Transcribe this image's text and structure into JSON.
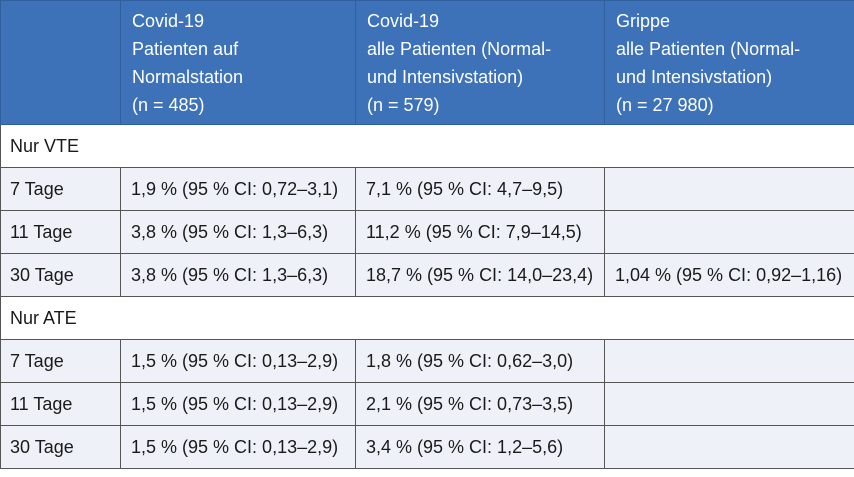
{
  "header": {
    "columns": [
      {
        "lines": [
          ""
        ]
      },
      {
        "lines": [
          "Covid-19",
          "Patienten auf",
          "Normalstation",
          "(n = 485)"
        ]
      },
      {
        "lines": [
          "Covid-19",
          "alle Patienten (Normal-",
          "und Intensivstation)",
          "(n = 579)"
        ]
      },
      {
        "lines": [
          "Grippe",
          "alle Patienten (Normal-",
          "und Intensivstation)",
          "(n = 27 980)"
        ]
      }
    ]
  },
  "sections": [
    {
      "title": "Nur VTE",
      "rows": [
        {
          "label": "7 Tage",
          "values": [
            "1,9 % (95 % CI: 0,72–3,1)",
            "7,1 % (95 % CI: 4,7–9,5)",
            ""
          ]
        },
        {
          "label": "11 Tage",
          "values": [
            "3,8 % (95 % CI: 1,3–6,3)",
            "11,2 % (95 % CI: 7,9–14,5)",
            ""
          ]
        },
        {
          "label": "30 Tage",
          "values": [
            "3,8 % (95 % CI: 1,3–6,3)",
            "18,7 % (95 % CI: 14,0–23,4)",
            "1,04 % (95 % CI: 0,92–1,16)"
          ]
        }
      ]
    },
    {
      "title": "Nur ATE",
      "rows": [
        {
          "label": "7 Tage",
          "values": [
            "1,5 % (95 % CI: 0,13–2,9)",
            "1,8 % (95 % CI: 0,62–3,0)",
            ""
          ]
        },
        {
          "label": "11 Tage",
          "values": [
            "1,5 % (95 % CI: 0,13–2,9)",
            "2,1 % (95 % CI: 0,73–3,5)",
            ""
          ]
        },
        {
          "label": "30 Tage",
          "values": [
            "1,5 % (95 % CI: 0,13–2,9)",
            "3,4 % (95 % CI: 1,2–5,6)",
            ""
          ]
        }
      ]
    }
  ]
}
